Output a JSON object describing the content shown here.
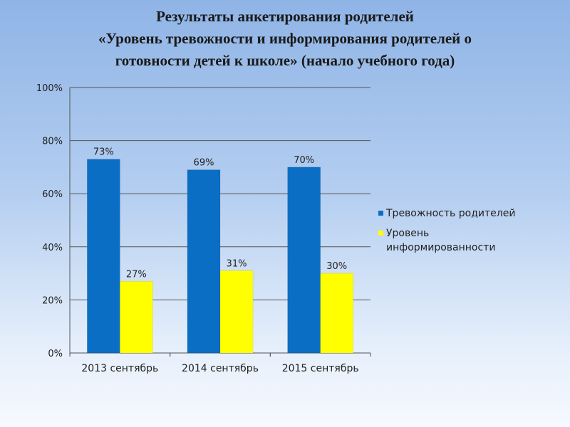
{
  "title_lines": [
    "Результаты  анкетирования родителей",
    "«Уровень тревожности и информирования  родителей о",
    "готовности детей к школе»  (начало учебного года)"
  ],
  "colors": {
    "series1": "#0a6fc4",
    "series2": "#ffff00"
  },
  "chart_data": {
    "type": "bar",
    "title": "Результаты  анкетирования родителей «Уровень тревожности и информирования  родителей о готовности детей к школе»  (начало учебного года)",
    "categories": [
      "2013 сентябрь",
      "2014 сентябрь",
      "2015 сентябрь"
    ],
    "series": [
      {
        "name": "Тревожность родителей",
        "values": [
          73,
          69,
          70
        ],
        "labels": [
          "73%",
          "69%",
          "70%"
        ]
      },
      {
        "name": "Уровень информированности",
        "legend_lines": [
          "Уровень",
          "информированности"
        ],
        "values": [
          27,
          31,
          30
        ],
        "labels": [
          "27%",
          "31%",
          "30%"
        ]
      }
    ],
    "ylim": [
      0,
      100
    ],
    "y_ticks": [
      "0%",
      "20%",
      "40%",
      "60%",
      "80%",
      "100%"
    ],
    "xlabel": "",
    "ylabel": "",
    "grid": true,
    "legend_position": "right"
  }
}
